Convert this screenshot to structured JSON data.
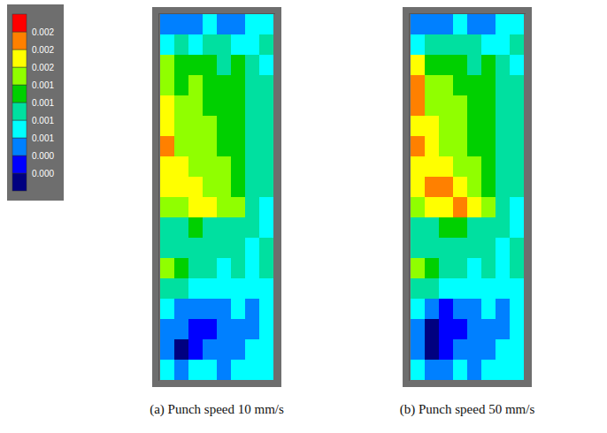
{
  "chart_data": [
    {
      "type": "heatmap",
      "title": "(a) Punch speed 10 mm/s",
      "tick_labels": false,
      "cells": [
        [
          0.0006,
          0.0007,
          0.0006,
          0.0008,
          0.0006,
          0.0007,
          0.0008,
          0.0009
        ],
        [
          0.0008,
          0.001,
          0.0009,
          0.0011,
          0.001,
          0.0008,
          0.0009,
          0.001
        ],
        [
          0.0016,
          0.0013,
          0.0014,
          0.0013,
          0.0012,
          0.0013,
          0.0011,
          0.0009
        ],
        [
          0.0017,
          0.0014,
          0.0015,
          0.0014,
          0.0013,
          0.0013,
          0.0012,
          0.001
        ],
        [
          0.0018,
          0.0015,
          0.0016,
          0.0014,
          0.0013,
          0.0013,
          0.0012,
          0.001
        ],
        [
          0.0019,
          0.0016,
          0.0015,
          0.0015,
          0.0014,
          0.0013,
          0.0012,
          0.001
        ],
        [
          0.002,
          0.0017,
          0.0016,
          0.0015,
          0.0014,
          0.0013,
          0.0012,
          0.001
        ],
        [
          0.0019,
          0.0018,
          0.0017,
          0.0016,
          0.0015,
          0.0013,
          0.0012,
          0.001
        ],
        [
          0.0018,
          0.0018,
          0.0019,
          0.0017,
          0.0016,
          0.0014,
          0.0012,
          0.001
        ],
        [
          0.0016,
          0.0017,
          0.0018,
          0.0019,
          0.0017,
          0.0015,
          0.0012,
          0.0009
        ],
        [
          0.0011,
          0.0012,
          0.0013,
          0.0012,
          0.0012,
          0.0011,
          0.001,
          0.0009
        ],
        [
          0.0012,
          0.0012,
          0.0012,
          0.0012,
          0.0012,
          0.0011,
          0.0008,
          0.001
        ],
        [
          0.0015,
          0.0013,
          0.0012,
          0.001,
          0.0009,
          0.001,
          0.0009,
          0.001
        ],
        [
          0.0012,
          0.001,
          0.0009,
          0.0008,
          0.0009,
          0.0008,
          0.0008,
          0.0009
        ],
        [
          0.0008,
          0.0006,
          0.0005,
          0.0006,
          0.0007,
          0.0008,
          0.0007,
          0.0009
        ],
        [
          0.0007,
          0.0005,
          0.0004,
          0.0004,
          0.0006,
          0.0007,
          0.0007,
          0.0008
        ],
        [
          0.0005,
          0.0002,
          0.0004,
          0.0005,
          0.0006,
          0.0007,
          0.0008,
          0.0008
        ],
        [
          0.0008,
          0.0007,
          0.0008,
          0.0008,
          0.0007,
          0.0008,
          0.0009,
          0.0009
        ]
      ]
    },
    {
      "type": "heatmap",
      "title": "(b) Punch speed 50 mm/s",
      "tick_labels": false,
      "cells": [
        [
          0.0006,
          0.0007,
          0.0007,
          0.0008,
          0.0005,
          0.0006,
          0.0008,
          0.0009
        ],
        [
          0.0009,
          0.0011,
          0.001,
          0.0011,
          0.001,
          0.0008,
          0.0009,
          0.001
        ],
        [
          0.0018,
          0.0014,
          0.0014,
          0.0013,
          0.0012,
          0.0013,
          0.0011,
          0.0009
        ],
        [
          0.0021,
          0.0016,
          0.0015,
          0.0014,
          0.0013,
          0.0013,
          0.0012,
          0.001
        ],
        [
          0.0021,
          0.0017,
          0.0016,
          0.0015,
          0.0013,
          0.0013,
          0.0012,
          0.001
        ],
        [
          0.0019,
          0.0018,
          0.0016,
          0.0015,
          0.0014,
          0.0013,
          0.0012,
          0.001
        ],
        [
          0.002,
          0.0018,
          0.0017,
          0.0016,
          0.0014,
          0.0013,
          0.0012,
          0.001
        ],
        [
          0.0019,
          0.0019,
          0.0018,
          0.0017,
          0.0015,
          0.0014,
          0.0012,
          0.001
        ],
        [
          0.0018,
          0.0021,
          0.002,
          0.0019,
          0.0017,
          0.0014,
          0.0012,
          0.001
        ],
        [
          0.0016,
          0.0018,
          0.0019,
          0.0021,
          0.0018,
          0.0015,
          0.0012,
          0.0009
        ],
        [
          0.0012,
          0.0012,
          0.0013,
          0.0013,
          0.0012,
          0.0011,
          0.001,
          0.0009
        ],
        [
          0.0012,
          0.0012,
          0.0012,
          0.0012,
          0.0012,
          0.0011,
          0.0008,
          0.001
        ],
        [
          0.0016,
          0.0013,
          0.0011,
          0.001,
          0.0009,
          0.001,
          0.0009,
          0.001
        ],
        [
          0.0012,
          0.001,
          0.0008,
          0.0008,
          0.0009,
          0.0008,
          0.0008,
          0.0009
        ],
        [
          0.0008,
          0.0005,
          0.0004,
          0.0006,
          0.0007,
          0.0008,
          0.0007,
          0.0009
        ],
        [
          0.0006,
          0.0002,
          0.0003,
          0.0004,
          0.0006,
          0.0007,
          0.0007,
          0.0008
        ],
        [
          0.0005,
          0.0001,
          0.0003,
          0.0005,
          0.0006,
          0.0007,
          0.0008,
          0.0008
        ],
        [
          0.0008,
          0.0006,
          0.0007,
          0.0008,
          0.0007,
          0.0008,
          0.0009,
          0.0009
        ]
      ]
    }
  ],
  "colorbar": {
    "range": [
      0,
      0.0025
    ],
    "ticks": [
      {
        "value": 0.00025,
        "label": "0.000"
      },
      {
        "value": 0.0005,
        "label": "0.000"
      },
      {
        "value": 0.00075,
        "label": "0.001"
      },
      {
        "value": 0.001,
        "label": "0.001"
      },
      {
        "value": 0.00125,
        "label": "0.001"
      },
      {
        "value": 0.0015,
        "label": "0.001"
      },
      {
        "value": 0.00175,
        "label": "0.002"
      },
      {
        "value": 0.002,
        "label": "0.002"
      },
      {
        "value": 0.00225,
        "label": "0.002"
      }
    ],
    "colors": [
      "#000080",
      "#0000ff",
      "#0080ff",
      "#00ffff",
      "#00e0a0",
      "#00d000",
      "#90ff00",
      "#ffff00",
      "#ff8000",
      "#ff0000"
    ]
  }
}
